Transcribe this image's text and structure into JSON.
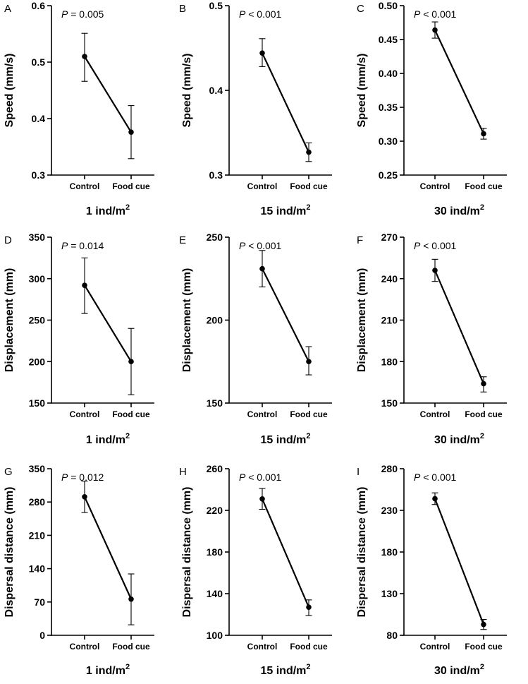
{
  "chart_data": [
    {
      "panel": "A",
      "type": "line",
      "pvalue": {
        "label": "P",
        "text": " = 0.005"
      },
      "ylabel": "Speed (mm/s)",
      "xlabel": {
        "base": "1 ind/m",
        "sup": "2"
      },
      "categories": [
        "Control",
        "Food cue"
      ],
      "values": [
        0.51,
        0.376
      ],
      "error": [
        [
          0.466,
          0.551
        ],
        [
          0.329,
          0.423
        ]
      ],
      "ylim": [
        0.3,
        0.6
      ],
      "yticks": [
        "0.3",
        "0.4",
        "0.5",
        "0.6"
      ]
    },
    {
      "panel": "B",
      "type": "line",
      "pvalue": {
        "label": "P",
        "text": " < 0.001"
      },
      "ylabel": "Speed (mm/s)",
      "xlabel": {
        "base": "15 ind/m",
        "sup": "2"
      },
      "categories": [
        "Control",
        "Food cue"
      ],
      "values": [
        0.444,
        0.327
      ],
      "error": [
        [
          0.428,
          0.461
        ],
        [
          0.316,
          0.338
        ]
      ],
      "ylim": [
        0.3,
        0.5
      ],
      "yticks": [
        "0.3",
        "0.4",
        "0.5"
      ]
    },
    {
      "panel": "C",
      "type": "line",
      "pvalue": {
        "label": "P",
        "text": " < 0.001"
      },
      "ylabel": "Speed (mm/s)",
      "xlabel": {
        "base": "30 ind/m",
        "sup": "2"
      },
      "categories": [
        "Control",
        "Food cue"
      ],
      "values": [
        0.464,
        0.311
      ],
      "error": [
        [
          0.452,
          0.476
        ],
        [
          0.303,
          0.319
        ]
      ],
      "ylim": [
        0.25,
        0.5
      ],
      "yticks": [
        "0.25",
        "0.30",
        "0.35",
        "0.40",
        "0.45",
        "0.50"
      ]
    },
    {
      "panel": "D",
      "type": "line",
      "pvalue": {
        "label": "P",
        "text": " = 0.014"
      },
      "ylabel": "Displacement (mm)",
      "xlabel": {
        "base": "1 ind/m",
        "sup": "2"
      },
      "categories": [
        "Control",
        "Food cue"
      ],
      "values": [
        292,
        200
      ],
      "error": [
        [
          258,
          325
        ],
        [
          160,
          240
        ]
      ],
      "ylim": [
        150,
        350
      ],
      "yticks": [
        "150",
        "200",
        "250",
        "300",
        "350"
      ]
    },
    {
      "panel": "E",
      "type": "line",
      "pvalue": {
        "label": "P",
        "text": " < 0.001"
      },
      "ylabel": "Displacement (mm)",
      "xlabel": {
        "base": "15 ind/m",
        "sup": "2"
      },
      "categories": [
        "Control",
        "Food cue"
      ],
      "values": [
        231,
        175
      ],
      "error": [
        [
          220,
          242
        ],
        [
          167,
          184
        ]
      ],
      "ylim": [
        150,
        250
      ],
      "yticks": [
        "150",
        "200",
        "250"
      ]
    },
    {
      "panel": "F",
      "type": "line",
      "pvalue": {
        "label": "P",
        "text": " < 0.001"
      },
      "ylabel": "Displacement (mm)",
      "xlabel": {
        "base": "30 ind/m",
        "sup": "2"
      },
      "categories": [
        "Control",
        "Food cue"
      ],
      "values": [
        246,
        164
      ],
      "error": [
        [
          238,
          254
        ],
        [
          158,
          169
        ]
      ],
      "ylim": [
        150,
        270
      ],
      "yticks": [
        "150",
        "180",
        "210",
        "240",
        "270"
      ]
    },
    {
      "panel": "G",
      "type": "line",
      "pvalue": {
        "label": "P",
        "text": " = 0.012"
      },
      "ylabel": "Dispersal distance (mm)",
      "xlabel": {
        "base": "1 ind/m",
        "sup": "2"
      },
      "categories": [
        "Control",
        "Food cue"
      ],
      "values": [
        291,
        76
      ],
      "error": [
        [
          258,
          324
        ],
        [
          22,
          129
        ]
      ],
      "ylim": [
        0,
        350
      ],
      "yticks": [
        "0",
        "70",
        "140",
        "210",
        "280",
        "350"
      ]
    },
    {
      "panel": "H",
      "type": "line",
      "pvalue": {
        "label": "P",
        "text": " < 0.001"
      },
      "ylabel": "Dispersal distance (mm)",
      "xlabel": {
        "base": "15 ind/m",
        "sup": "2"
      },
      "categories": [
        "Control",
        "Food cue"
      ],
      "values": [
        231,
        127
      ],
      "error": [
        [
          221,
          241
        ],
        [
          119,
          134
        ]
      ],
      "ylim": [
        100,
        260
      ],
      "yticks": [
        "100",
        "140",
        "180",
        "220",
        "260"
      ]
    },
    {
      "panel": "I",
      "type": "line",
      "pvalue": {
        "label": "P",
        "text": " < 0.001"
      },
      "ylabel": "Dispersal distance (mm)",
      "xlabel": {
        "base": "30 ind/m",
        "sup": "2"
      },
      "categories": [
        "Control",
        "Food cue"
      ],
      "values": [
        244,
        93
      ],
      "error": [
        [
          237,
          251
        ],
        [
          87,
          99
        ]
      ],
      "ylim": [
        80,
        280
      ],
      "yticks": [
        "80",
        "130",
        "180",
        "230",
        "280"
      ]
    }
  ]
}
